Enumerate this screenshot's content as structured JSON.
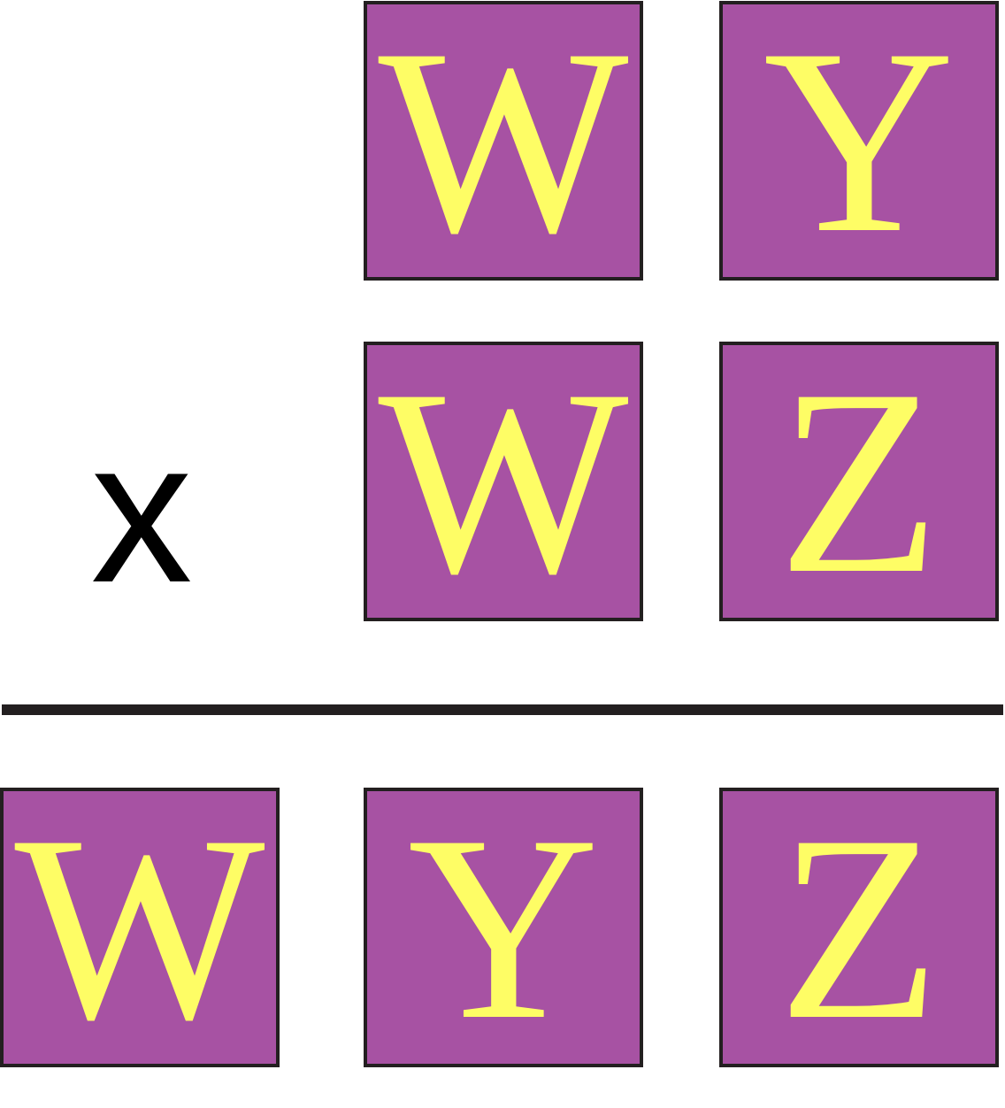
{
  "colors": {
    "tile_fill": "#a752a3",
    "tile_border": "#231f20",
    "letter": "#fefd65",
    "rule": "#231f20",
    "operator": "#000000"
  },
  "problem": {
    "multiplicand": [
      "W",
      "Y"
    ],
    "multiplier": [
      "W",
      "Z"
    ],
    "operator": "x",
    "product": [
      "W",
      "Y",
      "Z"
    ]
  }
}
